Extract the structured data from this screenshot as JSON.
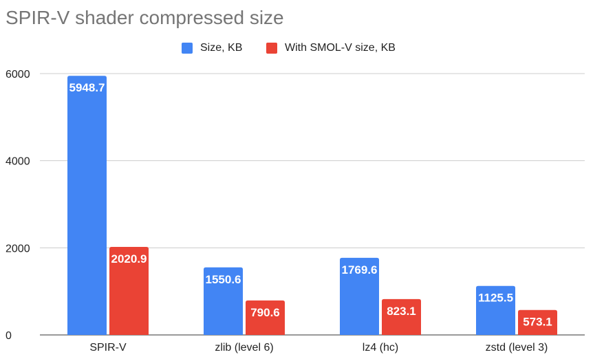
{
  "chart_data": {
    "type": "bar",
    "title": "SPIR-V shader compressed size",
    "categories": [
      "SPIR-V",
      "zlib (level 6)",
      "lz4 (hc)",
      "zstd (level 3)"
    ],
    "series": [
      {
        "name": "Size, KB",
        "color": "#4285f4",
        "values": [
          5948.7,
          1550.6,
          1769.6,
          1125.5
        ]
      },
      {
        "name": "With SMOL-V size, KB",
        "color": "#ea4335",
        "values": [
          2020.9,
          790.6,
          823.1,
          573.1
        ]
      }
    ],
    "yticks": [
      0,
      2000,
      4000,
      6000
    ],
    "ylim": [
      0,
      6000
    ],
    "grid": true,
    "legend_position": "top-center",
    "xlabel": "",
    "ylabel": ""
  }
}
